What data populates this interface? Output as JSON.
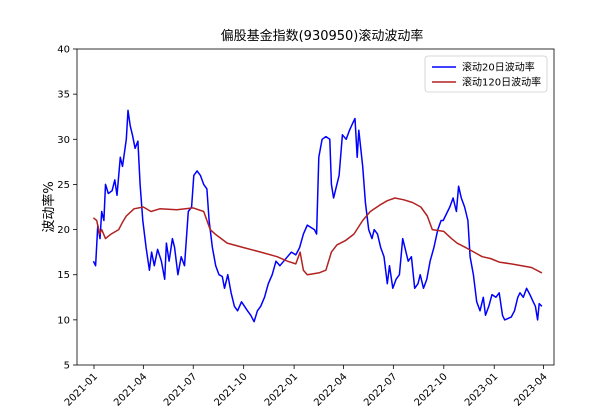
{
  "chart_data": {
    "type": "line",
    "title": "偏股基金指数(930950)滚动波动率",
    "xlabel": "",
    "ylabel": "波动率%",
    "ylim": [
      5,
      40
    ],
    "yticks": [
      5,
      10,
      15,
      20,
      25,
      30,
      35,
      40
    ],
    "xlim": [
      "2020-12-01",
      "2023-04-20"
    ],
    "xticks": [
      "2021-01",
      "2021-04",
      "2021-07",
      "2021-10",
      "2022-01",
      "2022-04",
      "2022-07",
      "2022-10",
      "2023-01",
      "2023-04"
    ],
    "grid": false,
    "legend_position": "top-right",
    "series": [
      {
        "name": "滚动20日波动率",
        "color": "#0000ff",
        "points": [
          [
            "2020-12-31",
            16.5
          ],
          [
            "2021-01-04",
            16.0
          ],
          [
            "2021-01-08",
            20.5
          ],
          [
            "2021-01-12",
            19.0
          ],
          [
            "2021-01-15",
            22.0
          ],
          [
            "2021-01-19",
            21.0
          ],
          [
            "2021-01-22",
            25.0
          ],
          [
            "2021-01-27",
            24.0
          ],
          [
            "2021-02-03",
            24.3
          ],
          [
            "2021-02-08",
            25.5
          ],
          [
            "2021-02-12",
            23.8
          ],
          [
            "2021-02-18",
            28.0
          ],
          [
            "2021-02-22",
            27.0
          ],
          [
            "2021-03-01",
            30.0
          ],
          [
            "2021-03-04",
            33.2
          ],
          [
            "2021-03-08",
            31.5
          ],
          [
            "2021-03-12",
            30.5
          ],
          [
            "2021-03-17",
            29.0
          ],
          [
            "2021-03-22",
            29.8
          ],
          [
            "2021-03-26",
            25.0
          ],
          [
            "2021-03-31",
            21.0
          ],
          [
            "2021-04-06",
            18.0
          ],
          [
            "2021-04-12",
            15.5
          ],
          [
            "2021-04-16",
            17.5
          ],
          [
            "2021-04-21",
            16.0
          ],
          [
            "2021-04-27",
            17.8
          ],
          [
            "2021-05-04",
            16.5
          ],
          [
            "2021-05-10",
            14.5
          ],
          [
            "2021-05-13",
            18.5
          ],
          [
            "2021-05-18",
            16.5
          ],
          [
            "2021-05-24",
            19.0
          ],
          [
            "2021-05-28",
            18.0
          ],
          [
            "2021-06-03",
            15.0
          ],
          [
            "2021-06-09",
            17.0
          ],
          [
            "2021-06-15",
            16.0
          ],
          [
            "2021-06-22",
            22.0
          ],
          [
            "2021-06-28",
            22.5
          ],
          [
            "2021-07-02",
            26.0
          ],
          [
            "2021-07-08",
            26.5
          ],
          [
            "2021-07-14",
            26.0
          ],
          [
            "2021-07-20",
            25.0
          ],
          [
            "2021-07-26",
            24.5
          ],
          [
            "2021-07-30",
            21.0
          ],
          [
            "2021-08-05",
            18.0
          ],
          [
            "2021-08-11",
            16.0
          ],
          [
            "2021-08-17",
            15.0
          ],
          [
            "2021-08-23",
            14.8
          ],
          [
            "2021-08-27",
            13.5
          ],
          [
            "2021-09-02",
            15.0
          ],
          [
            "2021-09-08",
            13.0
          ],
          [
            "2021-09-14",
            11.5
          ],
          [
            "2021-09-20",
            11.0
          ],
          [
            "2021-09-27",
            12.0
          ],
          [
            "2021-10-08",
            11.0
          ],
          [
            "2021-10-14",
            10.5
          ],
          [
            "2021-10-20",
            9.8
          ],
          [
            "2021-10-26",
            11.0
          ],
          [
            "2021-11-01",
            11.5
          ],
          [
            "2021-11-08",
            12.5
          ],
          [
            "2021-11-15",
            14.0
          ],
          [
            "2021-11-22",
            15.0
          ],
          [
            "2021-11-29",
            16.5
          ],
          [
            "2021-12-06",
            16.0
          ],
          [
            "2021-12-13",
            16.5
          ],
          [
            "2021-12-20",
            17.0
          ],
          [
            "2021-12-27",
            17.5
          ],
          [
            "2022-01-04",
            17.2
          ],
          [
            "2022-01-11",
            18.0
          ],
          [
            "2022-01-18",
            19.5
          ],
          [
            "2022-01-25",
            20.5
          ],
          [
            "2022-02-07",
            20.0
          ],
          [
            "2022-02-11",
            19.5
          ],
          [
            "2022-02-15",
            28.0
          ],
          [
            "2022-02-21",
            30.0
          ],
          [
            "2022-02-28",
            30.3
          ],
          [
            "2022-03-07",
            30.0
          ],
          [
            "2022-03-10",
            25.0
          ],
          [
            "2022-03-14",
            23.5
          ],
          [
            "2022-03-18",
            24.5
          ],
          [
            "2022-03-24",
            26.0
          ],
          [
            "2022-03-30",
            30.5
          ],
          [
            "2022-04-06",
            30.0
          ],
          [
            "2022-04-12",
            31.0
          ],
          [
            "2022-04-18",
            31.8
          ],
          [
            "2022-04-22",
            32.3
          ],
          [
            "2022-04-26",
            28.0
          ],
          [
            "2022-04-29",
            31.0
          ],
          [
            "2022-05-06",
            27.0
          ],
          [
            "2022-05-11",
            23.0
          ],
          [
            "2022-05-17",
            20.0
          ],
          [
            "2022-05-23",
            19.0
          ],
          [
            "2022-05-27",
            20.0
          ],
          [
            "2022-06-02",
            19.5
          ],
          [
            "2022-06-08",
            18.0
          ],
          [
            "2022-06-14",
            17.0
          ],
          [
            "2022-06-20",
            14.0
          ],
          [
            "2022-06-24",
            16.0
          ],
          [
            "2022-06-30",
            13.5
          ],
          [
            "2022-07-06",
            14.5
          ],
          [
            "2022-07-12",
            15.0
          ],
          [
            "2022-07-18",
            19.0
          ],
          [
            "2022-07-22",
            18.0
          ],
          [
            "2022-07-28",
            16.5
          ],
          [
            "2022-08-03",
            17.0
          ],
          [
            "2022-08-09",
            13.5
          ],
          [
            "2022-08-15",
            14.0
          ],
          [
            "2022-08-19",
            15.0
          ],
          [
            "2022-08-25",
            13.5
          ],
          [
            "2022-08-31",
            14.5
          ],
          [
            "2022-09-06",
            16.5
          ],
          [
            "2022-09-13",
            18.0
          ],
          [
            "2022-09-20",
            20.0
          ],
          [
            "2022-09-26",
            21.0
          ],
          [
            "2022-09-30",
            21.0
          ],
          [
            "2022-10-12",
            22.5
          ],
          [
            "2022-10-18",
            23.5
          ],
          [
            "2022-10-24",
            22.0
          ],
          [
            "2022-10-28",
            24.8
          ],
          [
            "2022-11-02",
            23.5
          ],
          [
            "2022-11-08",
            22.5
          ],
          [
            "2022-11-14",
            21.0
          ],
          [
            "2022-11-18",
            17.0
          ],
          [
            "2022-11-24",
            15.0
          ],
          [
            "2022-11-30",
            12.0
          ],
          [
            "2022-12-06",
            11.0
          ],
          [
            "2022-12-12",
            12.5
          ],
          [
            "2022-12-16",
            10.5
          ],
          [
            "2022-12-22",
            11.5
          ],
          [
            "2022-12-28",
            12.8
          ],
          [
            "2023-01-04",
            12.5
          ],
          [
            "2023-01-10",
            13.0
          ],
          [
            "2023-01-16",
            10.5
          ],
          [
            "2023-01-20",
            10.0
          ],
          [
            "2023-02-01",
            10.3
          ],
          [
            "2023-02-07",
            11.0
          ],
          [
            "2023-02-13",
            12.5
          ],
          [
            "2023-02-17",
            13.0
          ],
          [
            "2023-02-23",
            12.5
          ],
          [
            "2023-03-01",
            13.5
          ],
          [
            "2023-03-07",
            12.8
          ],
          [
            "2023-03-13",
            12.0
          ],
          [
            "2023-03-17",
            11.5
          ],
          [
            "2023-03-21",
            10.0
          ],
          [
            "2023-03-24",
            11.8
          ],
          [
            "2023-03-29",
            11.5
          ]
        ]
      },
      {
        "name": "滚动120日波动率",
        "color": "#b22222",
        "points": [
          [
            "2020-12-31",
            21.3
          ],
          [
            "2021-01-06",
            21.0
          ],
          [
            "2021-01-11",
            19.5
          ],
          [
            "2021-01-15",
            20.0
          ],
          [
            "2021-01-22",
            19.0
          ],
          [
            "2021-02-01",
            19.5
          ],
          [
            "2021-02-15",
            20.0
          ],
          [
            "2021-02-22",
            20.8
          ],
          [
            "2021-03-01",
            21.5
          ],
          [
            "2021-03-15",
            22.3
          ],
          [
            "2021-04-01",
            22.5
          ],
          [
            "2021-04-15",
            22.0
          ],
          [
            "2021-05-01",
            22.3
          ],
          [
            "2021-06-01",
            22.2
          ],
          [
            "2021-07-01",
            22.4
          ],
          [
            "2021-07-20",
            22.0
          ],
          [
            "2021-08-01",
            20.0
          ],
          [
            "2021-08-10",
            19.5
          ],
          [
            "2021-09-01",
            18.5
          ],
          [
            "2021-10-01",
            18.0
          ],
          [
            "2021-11-01",
            17.5
          ],
          [
            "2021-12-01",
            17.0
          ],
          [
            "2021-12-20",
            16.5
          ],
          [
            "2022-01-04",
            16.2
          ],
          [
            "2022-01-12",
            17.5
          ],
          [
            "2022-01-18",
            15.5
          ],
          [
            "2022-01-25",
            15.0
          ],
          [
            "2022-02-15",
            15.2
          ],
          [
            "2022-02-28",
            15.5
          ],
          [
            "2022-03-10",
            17.5
          ],
          [
            "2022-03-20",
            18.3
          ],
          [
            "2022-04-05",
            18.8
          ],
          [
            "2022-04-20",
            19.5
          ],
          [
            "2022-05-06",
            21.0
          ],
          [
            "2022-05-20",
            22.0
          ],
          [
            "2022-06-06",
            22.7
          ],
          [
            "2022-06-20",
            23.2
          ],
          [
            "2022-07-04",
            23.5
          ],
          [
            "2022-07-20",
            23.3
          ],
          [
            "2022-08-05",
            23.0
          ],
          [
            "2022-08-20",
            22.5
          ],
          [
            "2022-09-01",
            21.5
          ],
          [
            "2022-09-10",
            20.0
          ],
          [
            "2022-10-01",
            19.8
          ],
          [
            "2022-10-15",
            19.0
          ],
          [
            "2022-10-25",
            18.5
          ],
          [
            "2022-11-10",
            18.0
          ],
          [
            "2022-11-25",
            17.5
          ],
          [
            "2022-12-10",
            17.0
          ],
          [
            "2022-12-25",
            16.8
          ],
          [
            "2023-01-10",
            16.4
          ],
          [
            "2023-02-01",
            16.2
          ],
          [
            "2023-02-20",
            16.0
          ],
          [
            "2023-03-10",
            15.8
          ],
          [
            "2023-03-29",
            15.2
          ]
        ]
      }
    ]
  }
}
